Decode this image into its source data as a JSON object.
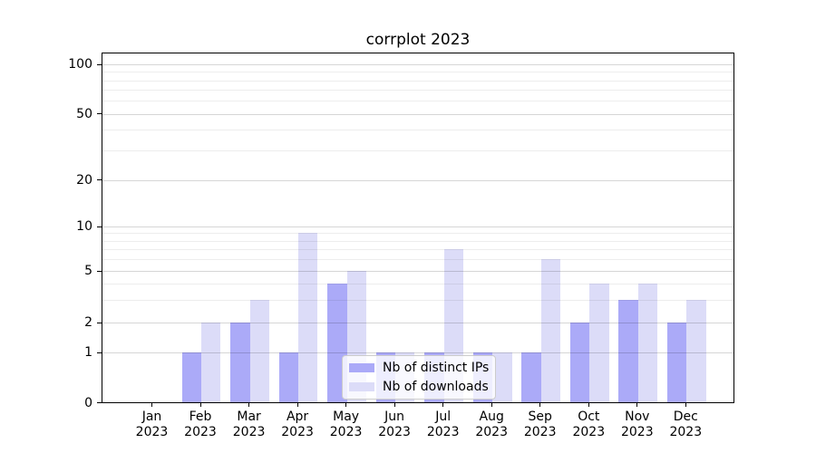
{
  "chart_data": {
    "type": "bar",
    "title": "corrplot 2023",
    "categories": [
      "Jan",
      "Feb",
      "Mar",
      "Apr",
      "May",
      "Jun",
      "Jul",
      "Aug",
      "Sep",
      "Oct",
      "Nov",
      "Dec"
    ],
    "category_year": "2023",
    "series": [
      {
        "name": "Nb of distinct IPs",
        "color": "#abaaf8",
        "values": [
          0,
          1,
          2,
          1,
          4,
          1,
          1,
          1,
          1,
          2,
          3,
          2
        ]
      },
      {
        "name": "Nb of downloads",
        "color": "#dcdcf8",
        "values": [
          0,
          2,
          3,
          9,
          5,
          1,
          7,
          1,
          6,
          4,
          4,
          3
        ]
      }
    ],
    "xlabel": "",
    "ylabel": "",
    "y_axis": {
      "scale": "log-like with 0 baseline",
      "tick_labels": [
        "100",
        "50",
        "20",
        "10",
        "5",
        "2",
        "1",
        "0"
      ],
      "major_tick_values": [
        100,
        50,
        20,
        10,
        5,
        2,
        1,
        0
      ],
      "minor_gridline_values": [
        3,
        4,
        6,
        7,
        8,
        9,
        30,
        40,
        60,
        70,
        80,
        90
      ],
      "ylim": [
        0,
        118
      ]
    },
    "grid": true,
    "legend": {
      "position": "lower center, inside plot"
    }
  },
  "colors": {
    "background": "#ffffff",
    "axis": "#000000",
    "grid_major": "rgba(0,0,0,0.16)",
    "grid_minor": "rgba(0,0,0,0.07)",
    "legend_border": "#cccccc"
  }
}
